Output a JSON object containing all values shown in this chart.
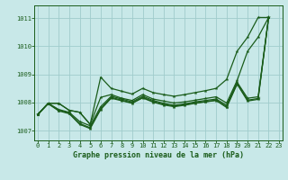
{
  "title": "Graphe pression niveau de la mer (hPa)",
  "bg_color": "#c8e8e8",
  "grid_color": "#a0cccc",
  "line_color": "#1a5c1a",
  "xlim": [
    -0.3,
    23.3
  ],
  "ylim": [
    1006.65,
    1011.45
  ],
  "yticks": [
    1007,
    1008,
    1009,
    1010,
    1011
  ],
  "xticks": [
    0,
    1,
    2,
    3,
    4,
    5,
    6,
    7,
    8,
    9,
    10,
    11,
    12,
    13,
    14,
    15,
    16,
    17,
    18,
    19,
    20,
    21,
    22,
    23
  ],
  "series": [
    {
      "x": [
        0,
        1,
        2,
        3,
        4,
        5,
        6,
        7,
        8,
        9,
        10,
        11,
        12,
        13,
        14,
        15,
        16,
        17,
        18,
        19,
        20,
        21,
        22
      ],
      "y": [
        1007.57,
        1007.97,
        1007.97,
        1007.72,
        1007.65,
        1007.22,
        1008.18,
        1008.28,
        1008.15,
        1008.07,
        1008.28,
        1008.12,
        1008.05,
        1007.98,
        1008.02,
        1008.08,
        1008.14,
        1008.2,
        1007.98,
        1008.78,
        1009.82,
        1010.32,
        1011.02
      ]
    },
    {
      "x": [
        0,
        1,
        2,
        3,
        4,
        5,
        6,
        7,
        8,
        9,
        10,
        11,
        12,
        13,
        14,
        15,
        16,
        17,
        18,
        19,
        20,
        21,
        22
      ],
      "y": [
        1007.57,
        1007.97,
        1007.75,
        1007.65,
        1007.32,
        1007.17,
        1007.85,
        1008.22,
        1008.12,
        1008.02,
        1008.22,
        1008.07,
        1007.97,
        1007.9,
        1007.95,
        1008.02,
        1008.07,
        1008.12,
        1007.9,
        1008.72,
        1008.15,
        1008.2,
        1011.02
      ]
    },
    {
      "x": [
        0,
        1,
        2,
        3,
        4,
        5,
        6,
        7,
        8,
        9,
        10,
        11,
        12,
        13,
        14,
        15,
        16,
        17,
        18,
        19,
        20,
        21,
        22
      ],
      "y": [
        1007.57,
        1007.97,
        1007.72,
        1007.62,
        1007.25,
        1007.1,
        1007.78,
        1008.18,
        1008.08,
        1007.98,
        1008.18,
        1008.03,
        1007.93,
        1007.87,
        1007.92,
        1007.98,
        1008.03,
        1008.08,
        1007.85,
        1008.68,
        1008.08,
        1008.14,
        1011.02
      ]
    },
    {
      "x": [
        0,
        1,
        2,
        3,
        4,
        5,
        6,
        7,
        8,
        9,
        10,
        11,
        12,
        13,
        14,
        15,
        16,
        17,
        18,
        19,
        20,
        21,
        22
      ],
      "y": [
        1007.57,
        1007.95,
        1007.7,
        1007.6,
        1007.22,
        1007.07,
        1007.75,
        1008.15,
        1008.06,
        1007.97,
        1008.16,
        1008.01,
        1007.91,
        1007.85,
        1007.9,
        1007.97,
        1008.02,
        1008.07,
        1007.82,
        1008.65,
        1008.05,
        1008.11,
        1011.02
      ]
    }
  ],
  "trend_x": [
    0,
    1,
    2,
    3,
    4,
    5,
    6,
    7,
    8,
    9,
    10,
    11,
    12,
    13,
    14,
    15,
    16,
    17,
    18,
    19,
    20,
    21,
    22
  ],
  "trend_y": [
    1007.57,
    1007.97,
    1007.97,
    1007.72,
    1007.65,
    1007.22,
    1008.9,
    1008.5,
    1008.4,
    1008.3,
    1008.5,
    1008.35,
    1008.28,
    1008.22,
    1008.28,
    1008.35,
    1008.42,
    1008.5,
    1008.82,
    1009.82,
    1010.32,
    1011.02,
    1011.02
  ],
  "marker_size": 3.0,
  "line_width": 0.9
}
